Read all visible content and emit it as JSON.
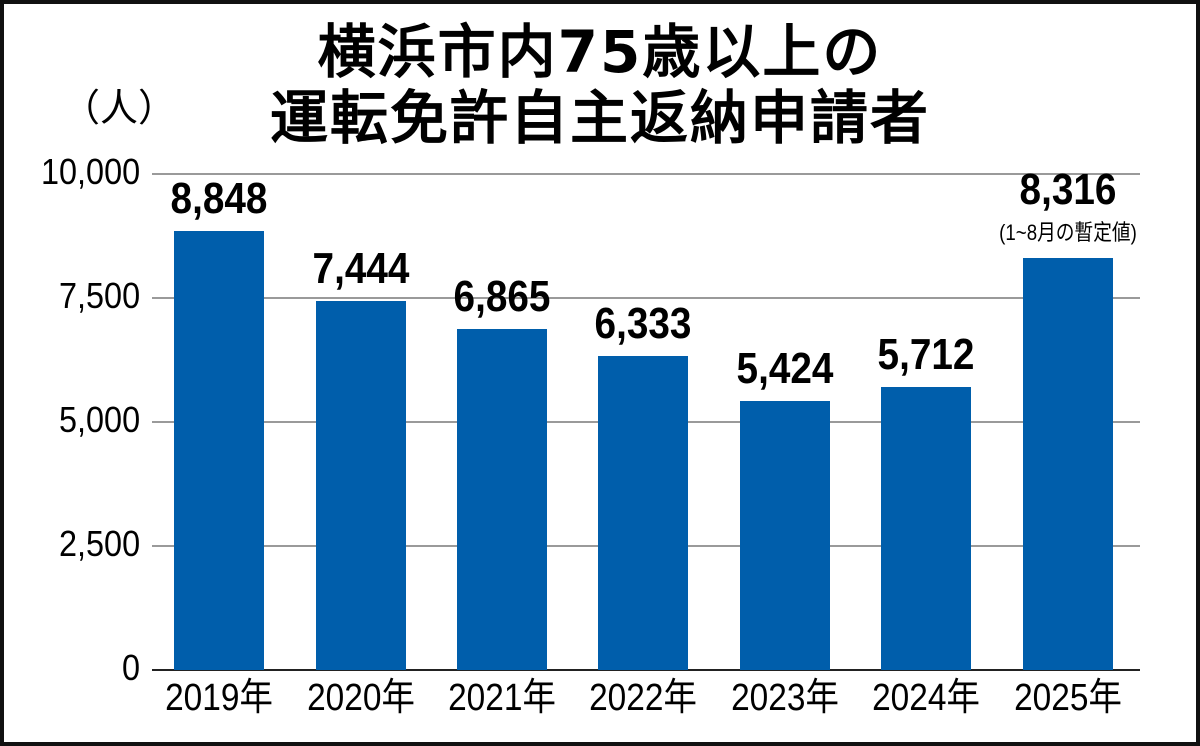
{
  "chart_data": {
    "type": "bar",
    "title": "横浜市内75歳以上の運転免許自主返納申請者",
    "title_lines": [
      "横浜市内75歳以上の",
      "運転免許自主返納申請者"
    ],
    "ylabel": "（人）",
    "xlabel": "",
    "categories": [
      "2019年",
      "2020年",
      "2021年",
      "2022年",
      "2023年",
      "2024年",
      "2025年"
    ],
    "values": [
      8848,
      7444,
      6865,
      6333,
      5424,
      5712,
      8316
    ],
    "value_labels": [
      "8,848",
      "7,444",
      "6,865",
      "6,333",
      "5,424",
      "5,712",
      "8,316"
    ],
    "annotations": [
      {
        "category": "2025年",
        "text": "(1~8月の暫定値)"
      }
    ],
    "ylim": [
      0,
      10000
    ],
    "yticks": [
      0,
      2500,
      5000,
      7500,
      10000
    ],
    "ytick_labels": [
      "0",
      "2,500",
      "5,000",
      "7,500",
      "10,000"
    ],
    "grid": true,
    "legend": null,
    "bar_color": "#005eab"
  }
}
